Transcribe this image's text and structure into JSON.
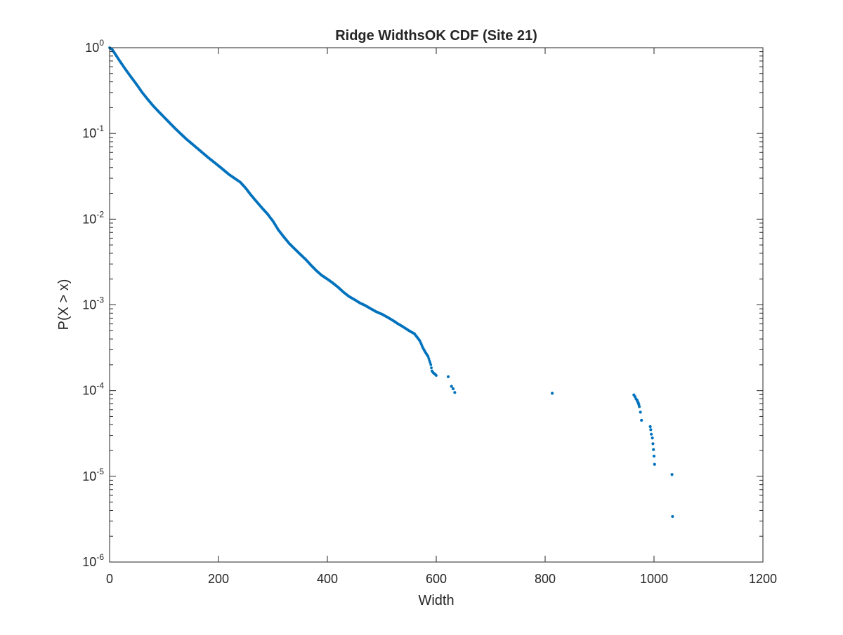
{
  "chart_data": {
    "type": "scatter",
    "title": "Ridge WidthsOK CDF (Site 21)",
    "xlabel": "Width",
    "ylabel": "P(X > x)",
    "xlim": [
      0,
      1200
    ],
    "ylim": [
      1e-06,
      1
    ],
    "yscale": "log",
    "grid": false,
    "legend": "none",
    "marker_color": "#0072BD",
    "x_ticks": [
      0,
      200,
      400,
      600,
      800,
      1000,
      1200
    ],
    "x_tick_labels": [
      "0",
      "200",
      "400",
      "600",
      "800",
      "1000",
      "1200"
    ],
    "y_ticks": [
      1e-06,
      1e-05,
      0.0001,
      0.001,
      0.01,
      0.1,
      1
    ],
    "y_tick_labels": [
      {
        "base": "10",
        "exp": "-6"
      },
      {
        "base": "10",
        "exp": "-5"
      },
      {
        "base": "10",
        "exp": "-4"
      },
      {
        "base": "10",
        "exp": "-3"
      },
      {
        "base": "10",
        "exp": "-2"
      },
      {
        "base": "10",
        "exp": "-1"
      },
      {
        "base": "10",
        "exp": "0"
      }
    ],
    "curve": {
      "description": "dense series of points",
      "x": [
        0,
        5,
        10,
        20,
        30,
        40,
        50,
        60,
        70,
        80,
        90,
        100,
        120,
        140,
        160,
        180,
        200,
        220,
        240,
        250,
        260,
        270,
        280,
        290,
        300,
        310,
        320,
        330,
        340,
        350,
        360,
        370,
        380,
        390,
        400,
        410,
        420,
        430,
        440,
        450,
        460,
        470,
        480,
        490,
        500,
        510,
        520,
        530,
        540,
        550,
        560,
        570,
        575,
        580,
        585,
        590,
        592,
        595,
        598,
        600
      ],
      "y": [
        1.0,
        0.95,
        0.85,
        0.68,
        0.55,
        0.45,
        0.37,
        0.3,
        0.25,
        0.21,
        0.18,
        0.155,
        0.115,
        0.087,
        0.068,
        0.053,
        0.042,
        0.033,
        0.027,
        0.023,
        0.019,
        0.016,
        0.0135,
        0.0115,
        0.0095,
        0.0075,
        0.0062,
        0.0052,
        0.0045,
        0.0039,
        0.0034,
        0.0029,
        0.0025,
        0.0022,
        0.002,
        0.0018,
        0.0016,
        0.0014,
        0.00125,
        0.00115,
        0.00105,
        0.00098,
        0.0009,
        0.00083,
        0.00078,
        0.00072,
        0.00066,
        0.0006,
        0.00055,
        0.0005,
        0.00046,
        0.00038,
        0.00032,
        0.00028,
        0.00025,
        0.0002,
        0.00017,
        0.00016,
        0.000155,
        0.00015
      ]
    },
    "scatter_points": {
      "x": [
        622,
        628,
        631,
        634,
        813,
        963,
        965,
        967,
        969,
        970,
        971,
        972,
        973,
        975,
        977,
        993,
        994,
        995,
        997,
        998,
        999,
        1000,
        1001,
        1033,
        1034
      ],
      "y": [
        0.000145,
        0.000112,
        0.000105,
        9.5e-05,
        9.3e-05,
        8.9e-05,
        8.5e-05,
        8e-05,
        7.7e-05,
        7.4e-05,
        7.2e-05,
        6.9e-05,
        6.5e-05,
        5.6e-05,
        4.5e-05,
        3.8e-05,
        3.5e-05,
        3.1e-05,
        2.8e-05,
        2.4e-05,
        2.05e-05,
        1.72e-05,
        1.38e-05,
        1.05e-05,
        3.4e-06
      ]
    }
  }
}
